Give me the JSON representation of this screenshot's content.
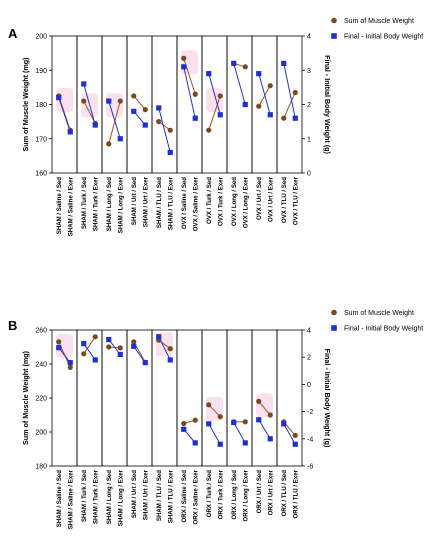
{
  "colors": {
    "muscle": "#7a4a1e",
    "body": "#1f2fd6",
    "muscle_line": "#a0522d",
    "body_line": "#2233cc",
    "highlight": "#f2bcd6"
  },
  "chart_data": [
    {
      "type": "line",
      "panel": "A",
      "ylabel": "Sum of Muscle Weight (mg)",
      "y2label": "Final - Initial Body Weight (g)",
      "ylim": [
        160,
        200
      ],
      "y2lim": [
        0,
        4
      ],
      "yticks": [
        160,
        170,
        180,
        190,
        200
      ],
      "y2ticks": [
        0,
        1,
        2,
        3,
        4
      ],
      "legend": {
        "placement": "top-right",
        "muscle": "Sum of Muscle Weight",
        "body": "Final - Initial Body Weight"
      },
      "groups": [
        {
          "labels": [
            "SHAM / Saline / Sed",
            "SHAM / Saline / Exer"
          ],
          "muscle": [
            182.5,
            172.5
          ],
          "body": [
            2.2,
            1.2
          ]
        },
        {
          "labels": [
            "SHAM / Turk / Sed",
            "SHAM / Turk / Exer"
          ],
          "muscle": [
            181.0,
            174.5
          ],
          "body": [
            2.6,
            1.4
          ]
        },
        {
          "labels": [
            "SHAM / Long / Sed",
            "SHAM / Long / Exer"
          ],
          "muscle": [
            168.5,
            181.0
          ],
          "body": [
            2.1,
            1.0
          ]
        },
        {
          "labels": [
            "SHAM / Urt / Sed",
            "SHAM / Urt / Exer"
          ],
          "muscle": [
            182.5,
            178.5
          ],
          "body": [
            1.8,
            1.4
          ]
        },
        {
          "labels": [
            "SHAM / TLU / Sed",
            "SHAM / TLU / Exer"
          ],
          "muscle": [
            175.0,
            172.5
          ],
          "body": [
            1.9,
            0.6
          ]
        },
        {
          "labels": [
            "OVX / Saline / Sed",
            "OVX / Saline / Exer"
          ],
          "muscle": [
            193.5,
            183.0
          ],
          "body": [
            3.1,
            1.6
          ]
        },
        {
          "labels": [
            "OVX / Turk / Sed",
            "OVX / Turk / Exer"
          ],
          "muscle": [
            172.5,
            182.5
          ],
          "body": [
            2.9,
            1.7
          ]
        },
        {
          "labels": [
            "OVX / Long / Sed",
            "OVX / Long / Exer"
          ],
          "muscle": [
            192.0,
            191.0
          ],
          "body": [
            3.2,
            2.0
          ]
        },
        {
          "labels": [
            "OVX / Urt / Sed",
            "OVX / Urt / Exer"
          ],
          "muscle": [
            179.5,
            185.5
          ],
          "body": [
            2.9,
            1.7
          ]
        },
        {
          "labels": [
            "OVX / TLU / Sed",
            "OVX / TLU / Exer"
          ],
          "muscle": [
            176.0,
            183.5
          ],
          "body": [
            3.2,
            1.6
          ]
        }
      ]
    },
    {
      "type": "line",
      "panel": "B",
      "ylabel": "Sum of Muscle Weight (mg)",
      "y2label": "Final - Initial Body Weight (g)",
      "ylim": [
        180,
        260
      ],
      "y2lim": [
        -6,
        4
      ],
      "yticks": [
        180,
        200,
        220,
        240,
        260
      ],
      "y2ticks": [
        -6,
        -4,
        -2,
        0,
        2,
        4
      ],
      "legend": {
        "placement": "top-right",
        "muscle": "Sum of Muscle Weight",
        "body": "Final - Initial Body Weight"
      },
      "groups": [
        {
          "labels": [
            "SHAM / Saline / Sed",
            "SHAM / Saline / Exer"
          ],
          "muscle": [
            253.0,
            238.0
          ],
          "body": [
            2.7,
            1.6
          ]
        },
        {
          "labels": [
            "SHAM / Turk / Sed",
            "SHAM / Turk / Exer"
          ],
          "muscle": [
            246.0,
            256.0
          ],
          "body": [
            3.0,
            1.8
          ]
        },
        {
          "labels": [
            "SHAM / Long / Sed",
            "SHAM / Long / Exer"
          ],
          "muscle": [
            250.0,
            249.5
          ],
          "body": [
            3.3,
            2.2
          ]
        },
        {
          "labels": [
            "SHAM / Urt / Sed",
            "SHAM / Urt / Exer"
          ],
          "muscle": [
            253.0,
            241.0
          ],
          "body": [
            2.8,
            1.6
          ]
        },
        {
          "labels": [
            "SHAM / TLU / Sed",
            "SHAM / TLU / Exer"
          ],
          "muscle": [
            254.0,
            249.0
          ],
          "body": [
            3.5,
            1.8
          ]
        },
        {
          "labels": [
            "ORX / Saline / Sed",
            "ORX / Saline / Exer"
          ],
          "muscle": [
            205.0,
            207.0
          ],
          "body": [
            -3.3,
            -4.3
          ]
        },
        {
          "labels": [
            "ORX / Turk / Sed",
            "ORX / Turk / Exer"
          ],
          "muscle": [
            216.0,
            209.0
          ],
          "body": [
            -2.9,
            -4.4
          ]
        },
        {
          "labels": [
            "ORX / Long / Sed",
            "ORX / Long / Exer"
          ],
          "muscle": [
            206.0,
            206.0
          ],
          "body": [
            -2.8,
            -4.3
          ]
        },
        {
          "labels": [
            "ORX / Urt / Sed",
            "ORX / Urt / Exer"
          ],
          "muscle": [
            218.0,
            210.0
          ],
          "body": [
            -2.6,
            -4.0
          ]
        },
        {
          "labels": [
            "ORX / TLU / Sed",
            "ORX / TLU / Exer"
          ],
          "muscle": [
            206.0,
            198.0
          ],
          "body": [
            -2.9,
            -4.4
          ]
        }
      ]
    }
  ]
}
